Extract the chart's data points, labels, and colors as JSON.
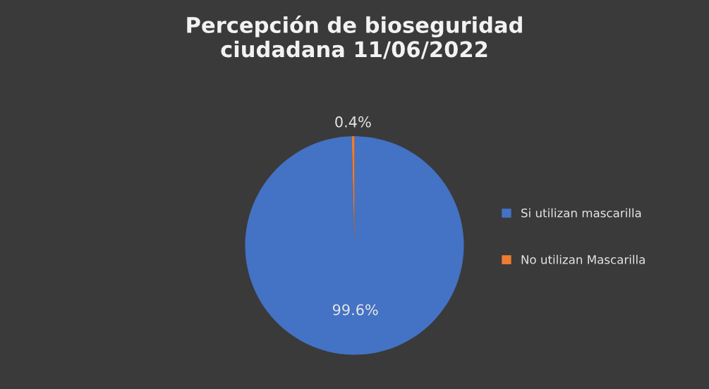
{
  "chart_data": {
    "type": "pie",
    "title": "Percepción de bioseguridad\nciudadana 11/06/2022",
    "categories": [
      "Si utilizan mascarilla",
      "No utilizan Mascarilla"
    ],
    "values": [
      99.6,
      0.4
    ],
    "colors": [
      "#4472c4",
      "#ed7d31"
    ],
    "value_labels": [
      "99.6%",
      "0.4%"
    ],
    "legend": "right"
  }
}
